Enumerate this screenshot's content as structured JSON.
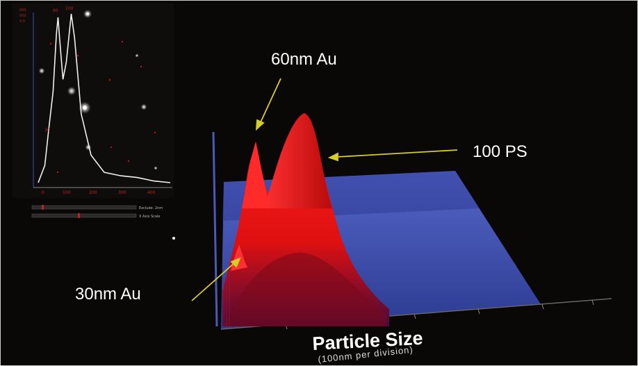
{
  "annotations": {
    "label_60nm": "60nm Au",
    "label_100ps": "100 PS",
    "label_30nm": "30nm Au"
  },
  "axis": {
    "title": "Particle Size",
    "subtitle": "(100nm per division)"
  },
  "inset": {
    "x_ticks": [
      "0",
      "100",
      "200",
      "300",
      "400"
    ],
    "peak_labels": [
      "60",
      "100"
    ],
    "small_peak_label": "30",
    "slider1_label": "Exclude: 2nm",
    "slider2_label": "X Axis Scale"
  },
  "colors": {
    "background": "#0a0806",
    "floor": "#3a4aa6",
    "peaks": "#ff1a1a",
    "arrow": "#d8cc2a",
    "label_text": "#ffffff"
  },
  "chart_data": {
    "type": "area",
    "title": "",
    "xlabel": "Particle Size",
    "xlabel_note": "(100nm per division)",
    "annotations": [
      {
        "text": "30nm Au",
        "x": 30
      },
      {
        "text": "60nm Au",
        "x": 60
      },
      {
        "text": "100 PS",
        "x": 100
      }
    ],
    "inset": {
      "type": "line",
      "x_ticks": [
        0,
        100,
        200,
        300,
        400
      ],
      "x": [
        0,
        20,
        30,
        45,
        55,
        60,
        65,
        75,
        85,
        100,
        110,
        130,
        160,
        200,
        250,
        300,
        350,
        400
      ],
      "y": [
        0.02,
        0.12,
        0.3,
        0.55,
        0.88,
        0.98,
        0.85,
        0.62,
        0.72,
        1.0,
        0.86,
        0.42,
        0.18,
        0.08,
        0.06,
        0.05,
        0.03,
        0.02
      ]
    }
  }
}
